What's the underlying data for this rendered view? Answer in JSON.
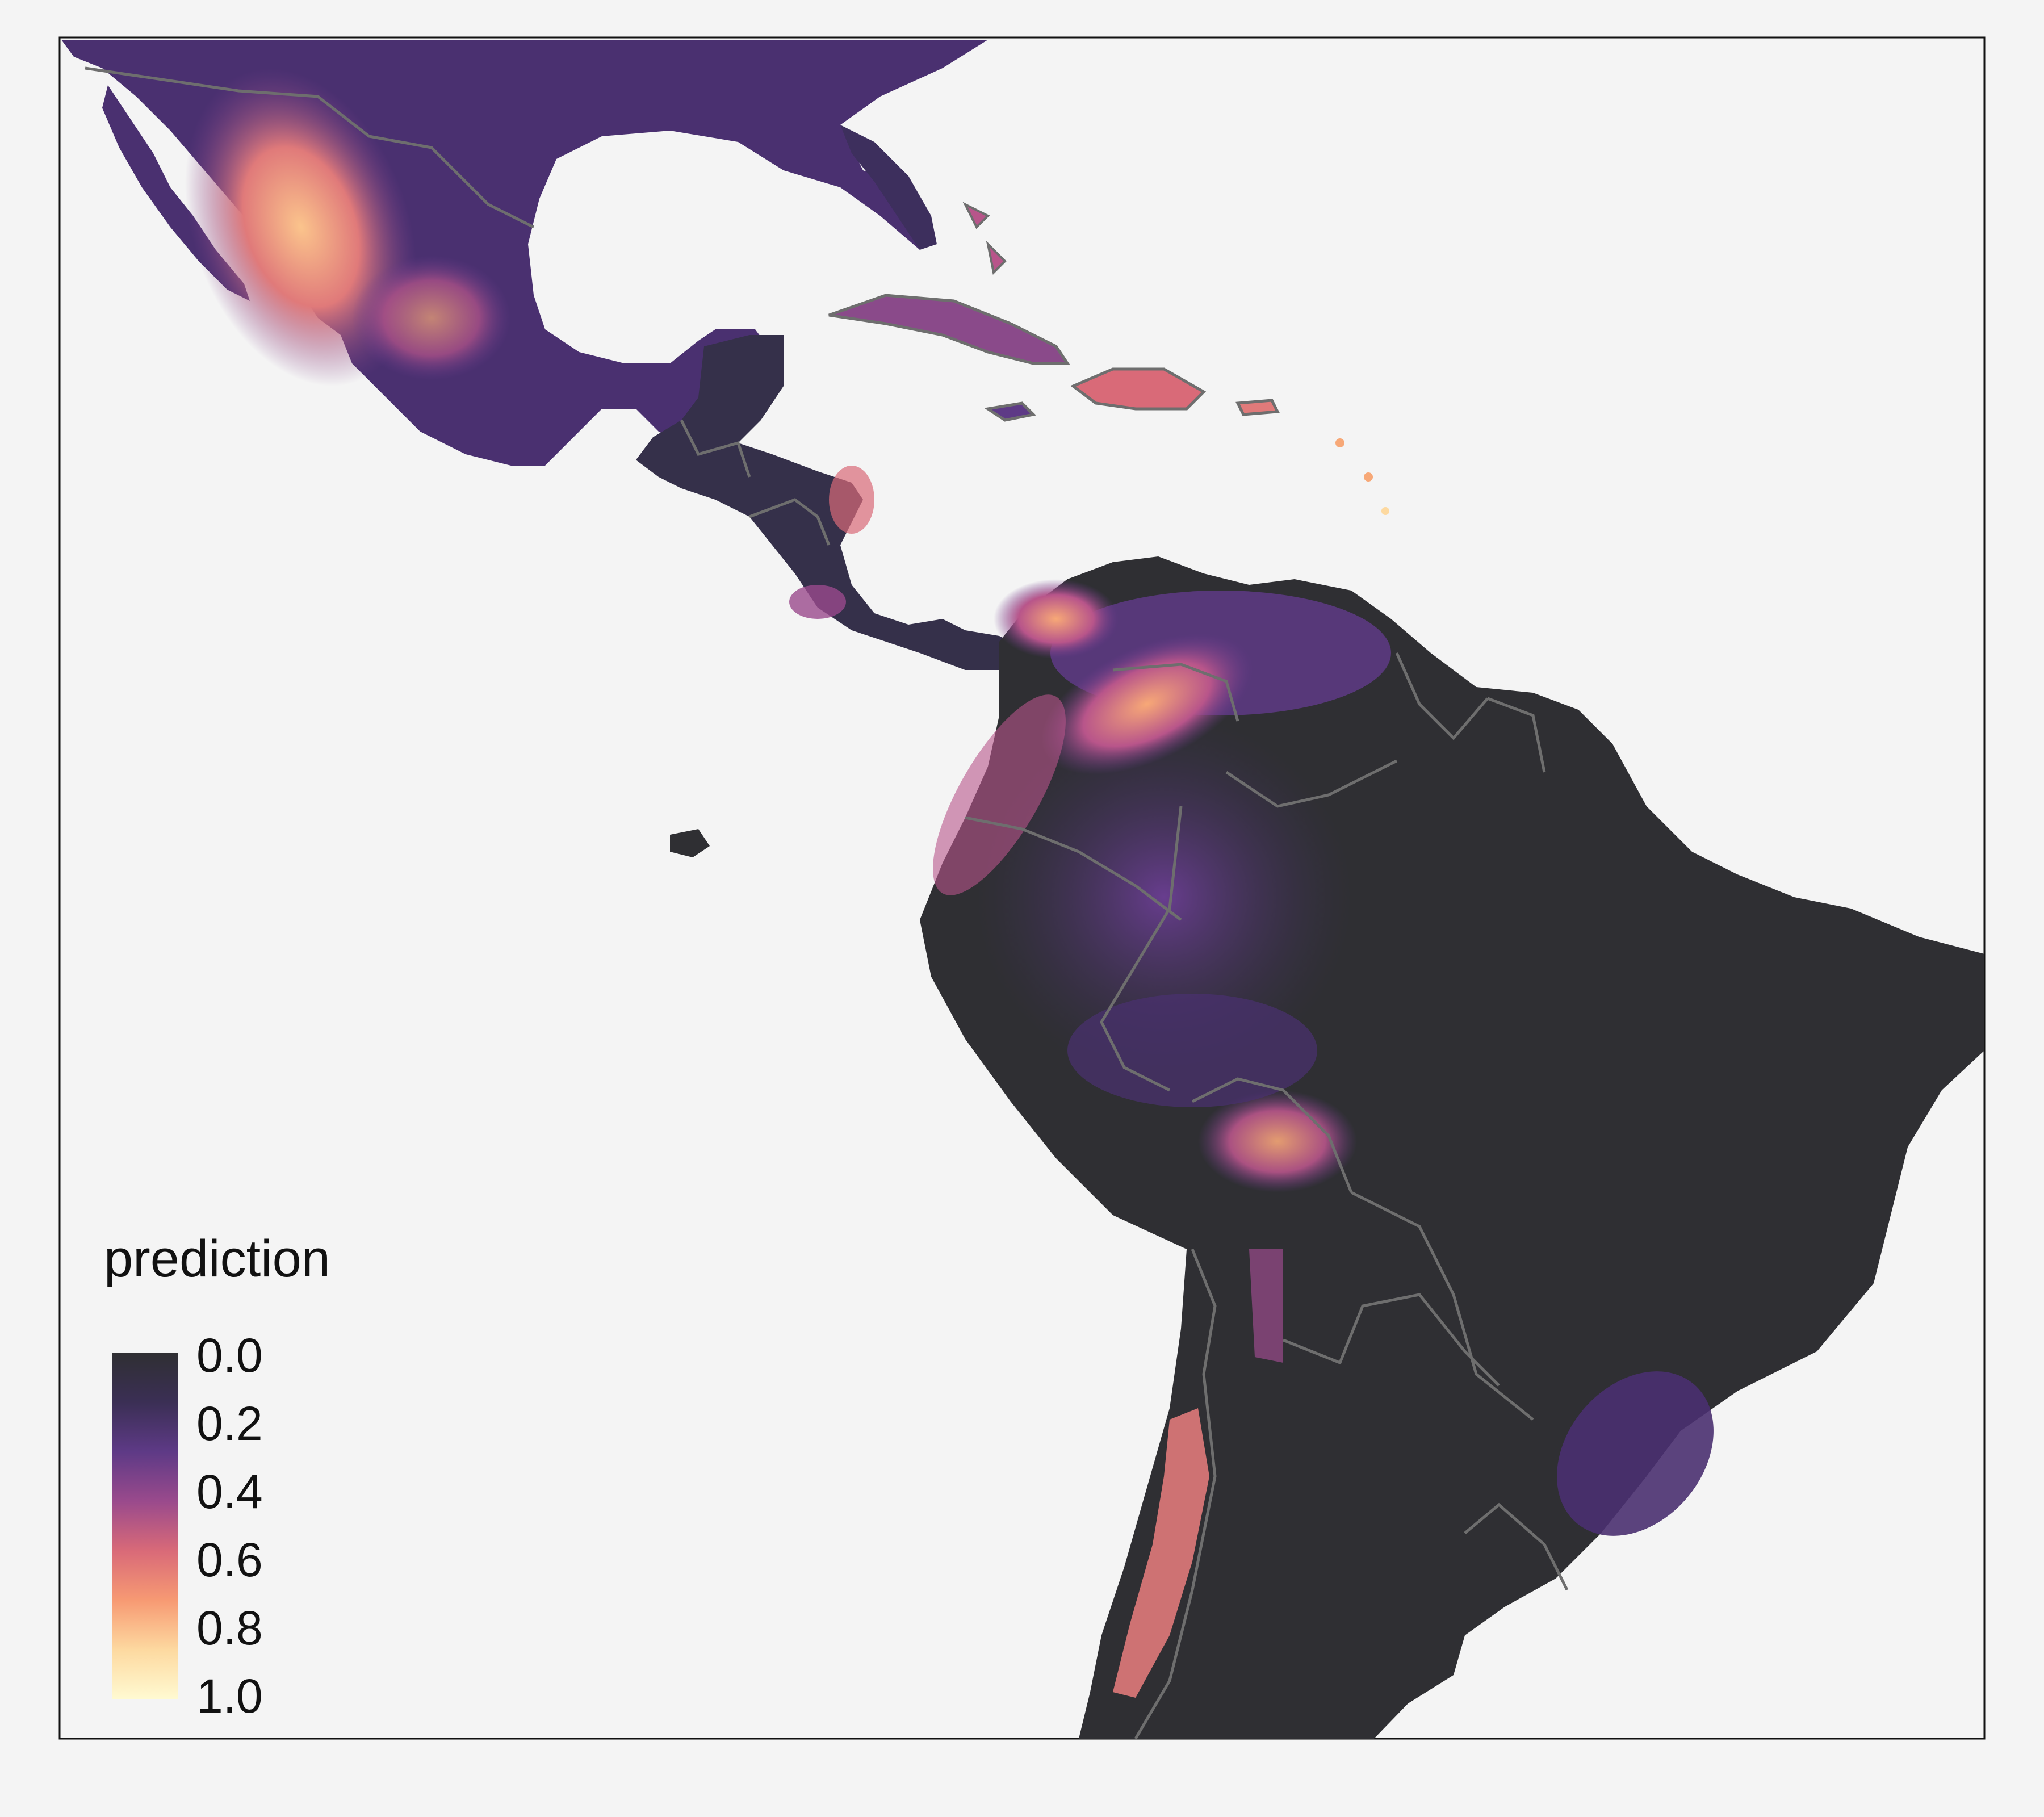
{
  "legend": {
    "title": "prediction",
    "ticks": [
      "0.0",
      "0.2",
      "0.4",
      "0.6",
      "0.8",
      "1.0"
    ],
    "colors": [
      "#2f2f33",
      "#3b2f55",
      "#5e3a86",
      "#9a4a8c",
      "#d96a78",
      "#f79a73",
      "#fdd9a0",
      "#fffad2"
    ]
  },
  "colors": {
    "background": "#f4f4f4",
    "frame": "#111111",
    "border": "#6e6e6e",
    "land_low": "#2f2f33"
  }
}
